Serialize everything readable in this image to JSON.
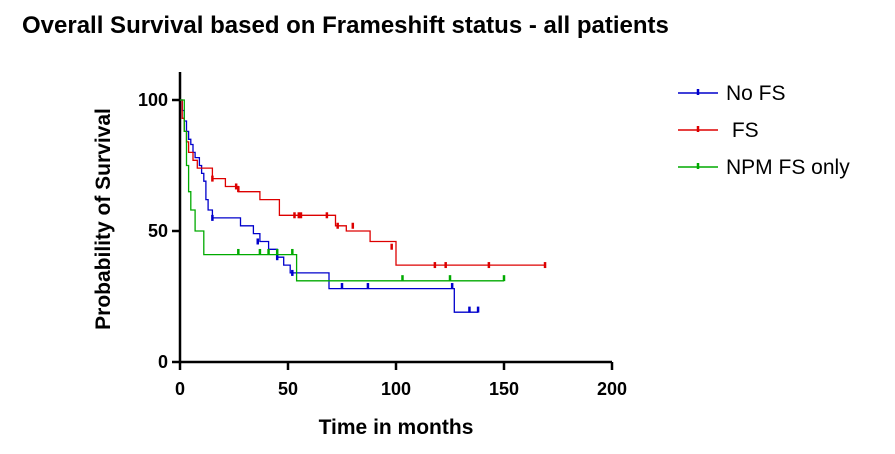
{
  "chart_data": {
    "type": "line",
    "title": "Overall Survival based on Frameshift status - all patients",
    "xlabel": "Time in months",
    "ylabel": "Probability of Survival",
    "xlim": [
      0,
      200
    ],
    "ylim": [
      0,
      100
    ],
    "xticks": [
      0,
      50,
      100,
      150,
      200
    ],
    "yticks": [
      0,
      50,
      100
    ],
    "grid": false,
    "legend_position": "top-right",
    "series": [
      {
        "name": "No FS",
        "color": "#0000cc",
        "steps": [
          [
            0,
            100
          ],
          [
            1,
            96
          ],
          [
            2,
            92
          ],
          [
            3,
            88
          ],
          [
            4,
            85
          ],
          [
            5,
            83
          ],
          [
            6,
            80
          ],
          [
            7,
            78
          ],
          [
            9,
            75
          ],
          [
            10,
            72
          ],
          [
            11,
            69
          ],
          [
            12,
            62
          ],
          [
            13,
            58
          ],
          [
            15,
            55
          ],
          [
            28,
            52
          ],
          [
            34,
            49
          ],
          [
            37,
            46
          ],
          [
            41,
            43
          ],
          [
            45,
            40
          ],
          [
            48,
            37
          ],
          [
            51,
            34
          ],
          [
            69,
            28
          ],
          [
            127,
            19
          ],
          [
            138,
            19
          ]
        ],
        "censored": [
          [
            15,
            55
          ],
          [
            36,
            46
          ],
          [
            45,
            40
          ],
          [
            52,
            34
          ],
          [
            75,
            29
          ],
          [
            87,
            29
          ],
          [
            126,
            29
          ],
          [
            134,
            20
          ],
          [
            138,
            20
          ]
        ]
      },
      {
        "name": " FS",
        "color": "#dd0000",
        "steps": [
          [
            0,
            100
          ],
          [
            1,
            93
          ],
          [
            2,
            88
          ],
          [
            3,
            84
          ],
          [
            4,
            80
          ],
          [
            6,
            77
          ],
          [
            8,
            74
          ],
          [
            15,
            70
          ],
          [
            21,
            67
          ],
          [
            27,
            65
          ],
          [
            37,
            62
          ],
          [
            46,
            56
          ],
          [
            72,
            52
          ],
          [
            77,
            50
          ],
          [
            88,
            46
          ],
          [
            100,
            37
          ],
          [
            169,
            37
          ]
        ],
        "censored": [
          [
            15,
            70
          ],
          [
            26,
            67
          ],
          [
            27,
            66
          ],
          [
            53,
            56
          ],
          [
            55,
            56
          ],
          [
            56,
            56
          ],
          [
            68,
            56
          ],
          [
            73,
            52
          ],
          [
            80,
            52
          ],
          [
            98,
            44
          ],
          [
            118,
            37
          ],
          [
            123,
            37
          ],
          [
            143,
            37
          ],
          [
            169,
            37
          ]
        ]
      },
      {
        "name": "NPM FS only",
        "color": "#00aa00",
        "steps": [
          [
            0,
            100
          ],
          [
            2,
            88
          ],
          [
            3,
            75
          ],
          [
            4,
            65
          ],
          [
            5,
            58
          ],
          [
            7,
            50
          ],
          [
            11,
            41
          ],
          [
            53,
            41
          ],
          [
            54,
            31
          ],
          [
            150,
            31
          ]
        ],
        "censored": [
          [
            27,
            42
          ],
          [
            37,
            42
          ],
          [
            41,
            42
          ],
          [
            45,
            42
          ],
          [
            52,
            42
          ],
          [
            103,
            32
          ],
          [
            125,
            32
          ],
          [
            150,
            32
          ]
        ]
      }
    ]
  }
}
